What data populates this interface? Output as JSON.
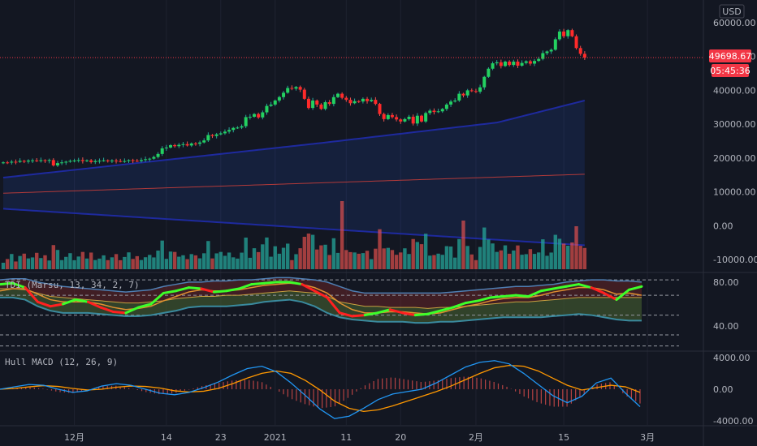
{
  "chart_data": {
    "type": "candlestick",
    "currency": "USD",
    "price_axis": {
      "ticks": [
        60000,
        50000,
        40000,
        30000,
        20000,
        10000,
        0,
        -10000
      ],
      "tick_labels": [
        "60000.00",
        "50000.00",
        "40000.00",
        "30000.00",
        "20000.00",
        "10000.00",
        "0.00",
        "-10000.00"
      ],
      "range": [
        -12500,
        64000
      ]
    },
    "last_price": {
      "label": "49698.67",
      "value": 49698.67,
      "color": "#f23645"
    },
    "countdown": "05:45:36",
    "x_axis": {
      "labels": [
        "12月",
        "14",
        "23",
        "2021",
        "11",
        "20",
        "2月",
        "15",
        "3月"
      ],
      "label_bar_index": [
        17,
        39,
        52,
        65,
        82,
        95,
        113,
        134,
        154
      ],
      "bar_count": 155
    },
    "candles_close": [
      18700,
      18650,
      18900,
      18850,
      19150,
      18950,
      19250,
      19300,
      19100,
      19350,
      19150,
      19400,
      17800,
      18500,
      18700,
      18900,
      19150,
      19250,
      19400,
      19100,
      19300,
      18800,
      19100,
      19200,
      19300,
      19100,
      19250,
      19100,
      19000,
      19100,
      19350,
      19200,
      19100,
      19400,
      19650,
      19800,
      20300,
      21200,
      22850,
      23100,
      23800,
      23500,
      23900,
      24100,
      23700,
      24300,
      24200,
      24600,
      25200,
      26800,
      26500,
      27000,
      27300,
      27800,
      28300,
      28900,
      29000,
      29400,
      32100,
      32200,
      33000,
      32000,
      33500,
      35400,
      35800,
      37000,
      38000,
      39300,
      40700,
      40500,
      41000,
      40200,
      37500,
      34800,
      37000,
      35800,
      34500,
      36500,
      36000,
      38000,
      39000,
      37800,
      37200,
      36200,
      36800,
      36700,
      37500,
      36800,
      37200,
      36000,
      33000,
      31500,
      32700,
      32100,
      31400,
      30800,
      31500,
      32200,
      30200,
      32500,
      30800,
      33300,
      34000,
      33600,
      33800,
      34500,
      35800,
      36700,
      37000,
      39000,
      38500,
      40000,
      39800,
      39600,
      40900,
      44000,
      46400,
      48000,
      48300,
      47200,
      48500,
      47500,
      48500,
      47300,
      48100,
      48600,
      47900,
      48700,
      49300,
      51000,
      51500,
      52000,
      55100,
      57400,
      56000,
      57800,
      56000,
      52500,
      50800,
      49698.67
    ],
    "bb_upper_end": 37000,
    "bb_mid_end": 15200,
    "bb_lower_end": -5800,
    "volume_colors": {
      "up": "#26a69a",
      "down": "#ef5350"
    },
    "tdi": {
      "title": "TDI (Marsu, 13, 34, 2, 7)",
      "ticks": [
        80,
        40
      ],
      "tick_labels": [
        "80.00",
        "40.00"
      ],
      "levels": [
        82,
        68,
        50,
        32,
        22
      ],
      "range": [
        18,
        88
      ],
      "fast": [
        78,
        79,
        75,
        62,
        58,
        60,
        64,
        62,
        57,
        53,
        52,
        57,
        60,
        70,
        72,
        75,
        74,
        71,
        72,
        74,
        78,
        79,
        80,
        80,
        78,
        72,
        66,
        52,
        49,
        50,
        52,
        55,
        52,
        50,
        51,
        54,
        57,
        61,
        63,
        66,
        67,
        68,
        67,
        72,
        74,
        76,
        78,
        75,
        70,
        64,
        73,
        76
      ],
      "signal": [
        72,
        74,
        74,
        69,
        64,
        62,
        62,
        62,
        60,
        57,
        55,
        56,
        58,
        63,
        67,
        71,
        73,
        72,
        72,
        73,
        75,
        77,
        78,
        79,
        78,
        75,
        70,
        61,
        55,
        52,
        52,
        53,
        53,
        52,
        51,
        52,
        55,
        58,
        60,
        63,
        65,
        66,
        66,
        68,
        71,
        73,
        75,
        75,
        73,
        69,
        70,
        68
      ],
      "band_upper": [
        82,
        83,
        83,
        80,
        78,
        76,
        75,
        74,
        73,
        72,
        71,
        72,
        73,
        76,
        78,
        80,
        80,
        81,
        81,
        82,
        82,
        83,
        84,
        84,
        83,
        82,
        80,
        76,
        72,
        70,
        70,
        70,
        70,
        70,
        70,
        70,
        71,
        72,
        73,
        74,
        75,
        76,
        76,
        77,
        78,
        80,
        81,
        82,
        82,
        81,
        81,
        80
      ],
      "band_lower": [
        66,
        66,
        64,
        58,
        54,
        52,
        52,
        52,
        51,
        50,
        49,
        49,
        50,
        52,
        54,
        57,
        58,
        58,
        58,
        59,
        60,
        62,
        63,
        64,
        62,
        58,
        52,
        48,
        46,
        45,
        44,
        44,
        44,
        43,
        43,
        44,
        44,
        45,
        46,
        47,
        48,
        48,
        48,
        48,
        49,
        50,
        51,
        50,
        48,
        46,
        45,
        45
      ],
      "mid_line": [
        74,
        74,
        73,
        70,
        67,
        66,
        65,
        64,
        63,
        62,
        61,
        61,
        62,
        63,
        65,
        66,
        67,
        67,
        68,
        68,
        69,
        70,
        71,
        72,
        71,
        70,
        67,
        62,
        60,
        58,
        58,
        57,
        57,
        57,
        56,
        57,
        57,
        58,
        59,
        60,
        61,
        62,
        62,
        63,
        64,
        65,
        66,
        66,
        66,
        66,
        66,
        66
      ],
      "colors": {
        "up": "#3dff2a",
        "down": "#ff2020",
        "signal": "#e09030",
        "band": "#4f7fb3"
      }
    },
    "hull_macd": {
      "title": "Hull MACD (12, 26, 9)",
      "ticks": [
        4000,
        0,
        -4000
      ],
      "tick_labels": [
        "4000.00",
        "0.00",
        "-4000.00"
      ],
      "range": [
        -4500,
        4700
      ],
      "macd": [
        0,
        300,
        600,
        500,
        0,
        -400,
        -200,
        400,
        700,
        500,
        0,
        -500,
        -700,
        -400,
        200,
        900,
        1800,
        2600,
        2900,
        2200,
        800,
        -800,
        -2500,
        -3700,
        -3400,
        -2400,
        -1300,
        -600,
        -300,
        0,
        800,
        1800,
        2800,
        3400,
        3600,
        3200,
        2000,
        600,
        -800,
        -1700,
        -900,
        800,
        1400,
        -500,
        -2200
      ],
      "signal": [
        0,
        100,
        300,
        450,
        350,
        100,
        -100,
        0,
        250,
        400,
        350,
        150,
        -200,
        -350,
        -250,
        100,
        700,
        1400,
        2000,
        2300,
        2000,
        1100,
        -100,
        -1500,
        -2400,
        -2800,
        -2600,
        -2100,
        -1500,
        -900,
        -300,
        400,
        1200,
        2000,
        2700,
        3000,
        2900,
        2300,
        1400,
        500,
        -100,
        200,
        500,
        300,
        -400
      ],
      "colors": {
        "macd": "#2196f3",
        "signal": "#ff9800",
        "hist": "#ef5350"
      }
    }
  }
}
